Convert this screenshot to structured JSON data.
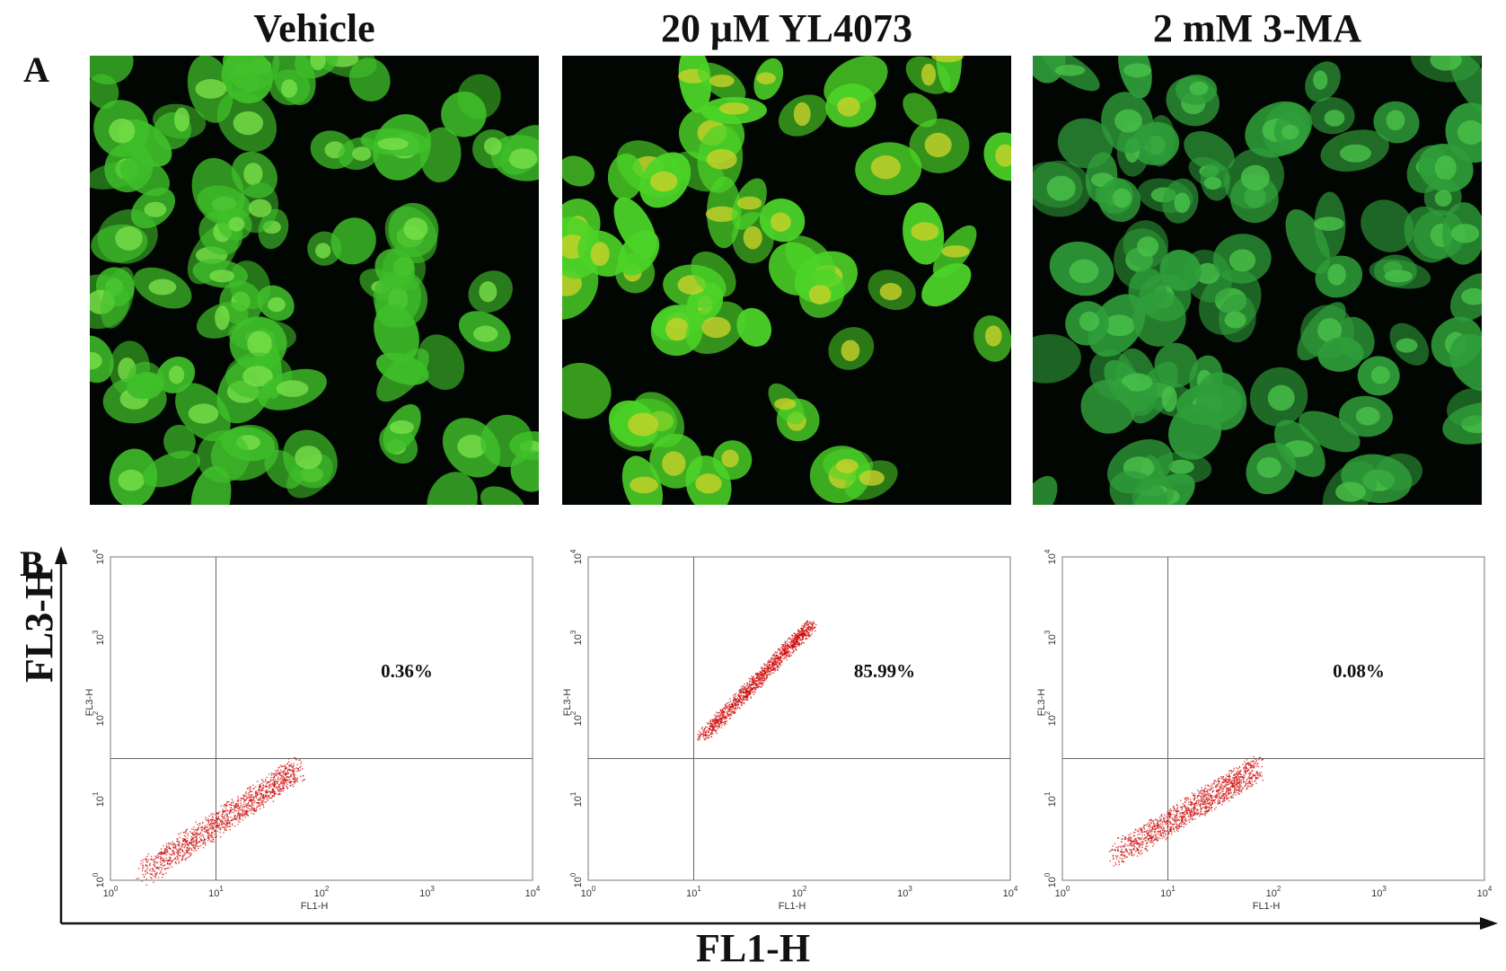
{
  "panels": {
    "a": "A",
    "b": "B"
  },
  "conditions": [
    "Vehicle",
    "20 μM YL4073",
    "2 mM 3-MA"
  ],
  "micrographs": [
    {
      "name": "vehicle",
      "tint": "#3fbf2a",
      "bright": "#79e04a"
    },
    {
      "name": "yl4073",
      "tint": "#4cd428",
      "bright": "#c8d22a"
    },
    {
      "name": "3ma",
      "tint": "#2f9e3a",
      "bright": "#4ac24a"
    }
  ],
  "axis_labels": {
    "y": "FL3-H",
    "x": "FL1-H"
  },
  "chart_data": [
    {
      "type": "scatter",
      "title": "Vehicle",
      "xlabel": "FL1-H",
      "ylabel": "FL3-H",
      "xscale": "log",
      "yscale": "log",
      "xlim": [
        1,
        10000
      ],
      "ylim": [
        1,
        10000
      ],
      "xticks": [
        "10^0",
        "10^1",
        "10^2",
        "10^3",
        "10^4"
      ],
      "yticks": [
        "10^0",
        "10^1",
        "10^2",
        "10^3",
        "10^4"
      ],
      "gate": {
        "x": 10,
        "y": 32
      },
      "upper_right_percent": "0.36%",
      "population": {
        "x_range": [
          2,
          60
        ],
        "y_range": [
          1.2,
          25
        ],
        "color": "#cc0000"
      }
    },
    {
      "type": "scatter",
      "title": "20 μM YL4073",
      "xlabel": "FL1-H",
      "ylabel": "FL3-H",
      "xscale": "log",
      "yscale": "log",
      "xlim": [
        1,
        10000
      ],
      "ylim": [
        1,
        10000
      ],
      "xticks": [
        "10^0",
        "10^1",
        "10^2",
        "10^3",
        "10^4"
      ],
      "yticks": [
        "10^0",
        "10^1",
        "10^2",
        "10^3",
        "10^4"
      ],
      "gate": {
        "x": 10,
        "y": 32
      },
      "upper_right_percent": "85.99%",
      "population": {
        "x_range": [
          12,
          130
        ],
        "y_range": [
          60,
          1500
        ],
        "color": "#cc0000"
      }
    },
    {
      "type": "scatter",
      "title": "2 mM 3-MA",
      "xlabel": "FL1-H",
      "ylabel": "FL3-H",
      "xscale": "log",
      "yscale": "log",
      "xlim": [
        1,
        10000
      ],
      "ylim": [
        1,
        10000
      ],
      "xticks": [
        "10^0",
        "10^1",
        "10^2",
        "10^3",
        "10^4"
      ],
      "yticks": [
        "10^0",
        "10^1",
        "10^2",
        "10^3",
        "10^4"
      ],
      "gate": {
        "x": 10,
        "y": 32
      },
      "upper_right_percent": "0.08%",
      "population": {
        "x_range": [
          3,
          70
        ],
        "y_range": [
          2,
          25
        ],
        "color": "#cc0000"
      }
    }
  ]
}
